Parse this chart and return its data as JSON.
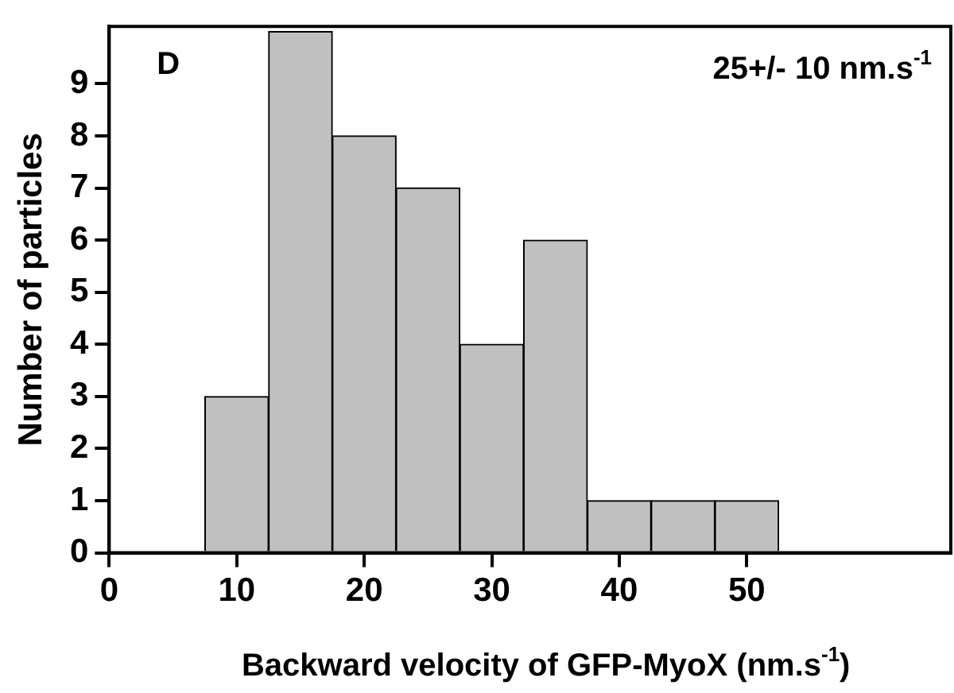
{
  "chart_data": {
    "type": "histogram",
    "title": "D",
    "annotations": [
      "25+/- 10 nm.s$^{-1}$"
    ],
    "xlabel": "Backward velocity of GFP-MyoX (nm.s$^{-1}$)",
    "ylabel": "Number of particles",
    "bins": [
      7.5,
      12.5,
      17.5,
      22.5,
      27.5,
      32.5,
      37.5,
      42.5,
      47.5,
      52.5
    ],
    "values": [
      3,
      10,
      8,
      7,
      4,
      6,
      1,
      1,
      1
    ],
    "color": "#c0c0c0",
    "xlim": [
      0,
      66
    ],
    "xticks": [
      0,
      10,
      20,
      30,
      40,
      50
    ],
    "ylim": [
      0,
      10.1
    ],
    "yticks": [
      0,
      1,
      2,
      3,
      4,
      5,
      6,
      7,
      8,
      9
    ],
    "grid": false,
    "legend": false
  }
}
